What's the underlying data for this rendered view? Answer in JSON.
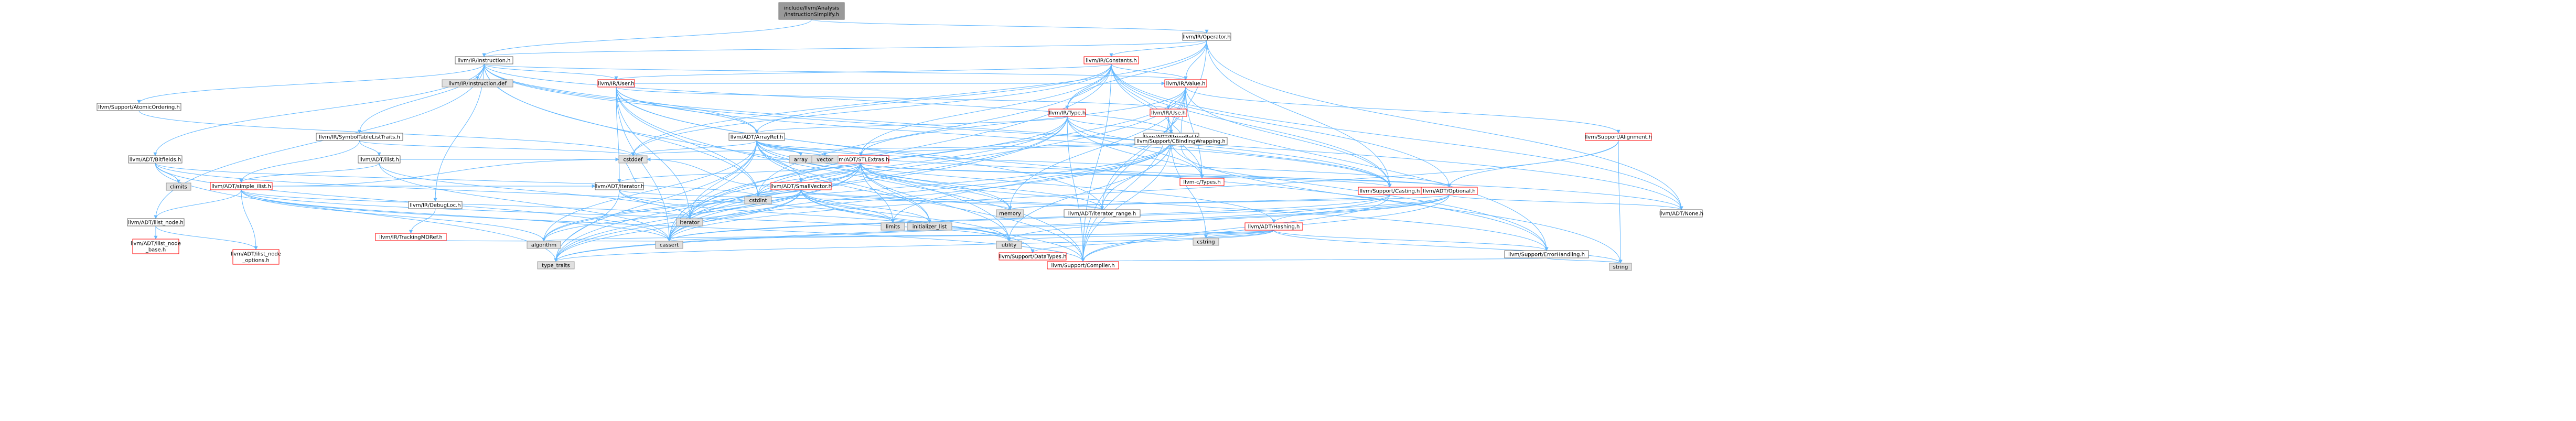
{
  "colors": {
    "root_fill": "#999999",
    "node_fill": "#ffffff",
    "node_border_red": "#ff0000",
    "node_border_normal": "#666666",
    "system_fill": "#e0e0e0",
    "system_border": "#999999",
    "edge_color": "#63b8ff"
  },
  "nodes": [
    {
      "id": "root",
      "lines": [
        "include/llvm/Analysis",
        "/InstructionSimplify.h"
      ],
      "style": "root"
    },
    {
      "id": "operator",
      "lines": [
        "llvm/IR/Operator.h"
      ],
      "style": "normal"
    },
    {
      "id": "instruction",
      "lines": [
        "llvm/IR/Instruction.h"
      ],
      "style": "normal"
    },
    {
      "id": "constants",
      "lines": [
        "llvm/IR/Constants.h"
      ],
      "style": "red"
    },
    {
      "id": "instdef",
      "lines": [
        "llvm/IR/Instruction.def"
      ],
      "style": "system"
    },
    {
      "id": "user",
      "lines": [
        "llvm/IR/User.h"
      ],
      "style": "red"
    },
    {
      "id": "type",
      "lines": [
        "llvm/IR/Type.h"
      ],
      "style": "red"
    },
    {
      "id": "value",
      "lines": [
        "llvm/IR/Value.h"
      ],
      "style": "red"
    },
    {
      "id": "atomic",
      "lines": [
        "llvm/Support/AtomicOrdering.h"
      ],
      "style": "normal"
    },
    {
      "id": "symtab",
      "lines": [
        "llvm/IR/SymbolTableListTraits.h"
      ],
      "style": "normal"
    },
    {
      "id": "arrayref",
      "lines": [
        "llvm/ADT/ArrayRef.h"
      ],
      "style": "normal"
    },
    {
      "id": "stringref",
      "lines": [
        "llvm/ADT/StringRef.h"
      ],
      "style": "normal"
    },
    {
      "id": "use",
      "lines": [
        "llvm/IR/Use.h"
      ],
      "style": "red"
    },
    {
      "id": "cbw",
      "lines": [
        "llvm/Support/CBindingWrapping.h"
      ],
      "style": "normal"
    },
    {
      "id": "alignment",
      "lines": [
        "llvm/Support/Alignment.h"
      ],
      "style": "red"
    },
    {
      "id": "bitfields",
      "lines": [
        "llvm/ADT/Bitfields.h"
      ],
      "style": "normal"
    },
    {
      "id": "ilist",
      "lines": [
        "llvm/ADT/ilist.h"
      ],
      "style": "normal"
    },
    {
      "id": "debugloc",
      "lines": [
        "llvm/IR/DebugLoc.h"
      ],
      "style": "normal"
    },
    {
      "id": "iterator",
      "lines": [
        "llvm/ADT/iterator.h"
      ],
      "style": "normal"
    },
    {
      "id": "smallvector",
      "lines": [
        "llvm/ADT/SmallVector.h"
      ],
      "style": "red"
    },
    {
      "id": "stlextras",
      "lines": [
        "llvm/ADT/STLExtras.h"
      ],
      "style": "red"
    },
    {
      "id": "casting",
      "lines": [
        "llvm/Support/Casting.h"
      ],
      "style": "red"
    },
    {
      "id": "optional",
      "lines": [
        "llvm/ADT/Optional.h"
      ],
      "style": "red"
    },
    {
      "id": "ctypes",
      "lines": [
        "llvm-c/Types.h"
      ],
      "style": "red"
    },
    {
      "id": "simpleilist",
      "lines": [
        "llvm/ADT/simple_ilist.h"
      ],
      "style": "red"
    },
    {
      "id": "trackingmd",
      "lines": [
        "llvm/IR/TrackingMDRef.h"
      ],
      "style": "red"
    },
    {
      "id": "ilistnode",
      "lines": [
        "llvm/ADT/ilist_node.h"
      ],
      "style": "normal"
    },
    {
      "id": "ilistnodebase",
      "lines": [
        "llvm/ADT/ilist_node",
        "_base.h"
      ],
      "style": "red"
    },
    {
      "id": "ilistnodeopts",
      "lines": [
        "llvm/ADT/ilist_node",
        "_options.h"
      ],
      "style": "red"
    },
    {
      "id": "iterrange",
      "lines": [
        "llvm/ADT/iterator_range.h"
      ],
      "style": "normal"
    },
    {
      "id": "hashing",
      "lines": [
        "llvm/ADT/Hashing.h"
      ],
      "style": "red"
    },
    {
      "id": "none",
      "lines": [
        "llvm/ADT/None.h"
      ],
      "style": "normal"
    },
    {
      "id": "errh",
      "lines": [
        "llvm/Support/ErrorHandling.h"
      ],
      "style": "normal"
    },
    {
      "id": "compiler",
      "lines": [
        "llvm/Support/Compiler.h"
      ],
      "style": "red"
    },
    {
      "id": "datatypes",
      "lines": [
        "llvm/Support/DataTypes.h"
      ],
      "style": "red"
    },
    {
      "id": "cstddef",
      "lines": [
        "cstddef"
      ],
      "style": "system"
    },
    {
      "id": "cstdint",
      "lines": [
        "cstdint"
      ],
      "style": "system"
    },
    {
      "id": "climits",
      "lines": [
        "climits"
      ],
      "style": "system"
    },
    {
      "id": "array",
      "lines": [
        "array"
      ],
      "style": "system"
    },
    {
      "id": "vector",
      "lines": [
        "vector"
      ],
      "style": "system"
    },
    {
      "id": "iteratorh",
      "lines": [
        "iterator"
      ],
      "style": "system"
    },
    {
      "id": "limits",
      "lines": [
        "limits"
      ],
      "style": "system"
    },
    {
      "id": "initlist",
      "lines": [
        "initializer_list"
      ],
      "style": "system"
    },
    {
      "id": "memory",
      "lines": [
        "memory"
      ],
      "style": "system"
    },
    {
      "id": "algorithm",
      "lines": [
        "algorithm"
      ],
      "style": "system"
    },
    {
      "id": "cassert",
      "lines": [
        "cassert"
      ],
      "style": "system"
    },
    {
      "id": "utility",
      "lines": [
        "utility"
      ],
      "style": "system"
    },
    {
      "id": "cstring",
      "lines": [
        "cstring"
      ],
      "style": "system"
    },
    {
      "id": "typetraits",
      "lines": [
        "type_traits"
      ],
      "style": "system"
    },
    {
      "id": "string",
      "lines": [
        "string"
      ],
      "style": "system"
    }
  ],
  "edges": [
    [
      "root",
      "operator"
    ],
    [
      "root",
      "instruction"
    ],
    [
      "operator",
      "constants"
    ],
    [
      "operator",
      "instruction"
    ],
    [
      "operator",
      "type"
    ],
    [
      "operator",
      "value"
    ],
    [
      "operator",
      "casting"
    ],
    [
      "operator",
      "none"
    ],
    [
      "operator",
      "compiler"
    ],
    [
      "operator",
      "cstddef"
    ],
    [
      "instruction",
      "instdef"
    ],
    [
      "instruction",
      "user"
    ],
    [
      "instruction",
      "atomic"
    ],
    [
      "instruction",
      "symtab"
    ],
    [
      "instruction",
      "bitfields"
    ],
    [
      "instruction",
      "debugloc"
    ],
    [
      "instruction",
      "ilistnode"
    ],
    [
      "instruction",
      "arrayref"
    ],
    [
      "instruction",
      "none"
    ],
    [
      "instruction",
      "stringref"
    ],
    [
      "instruction",
      "cstdint"
    ],
    [
      "instruction",
      "utility"
    ],
    [
      "instruction",
      "casting"
    ],
    [
      "instruction",
      "value"
    ],
    [
      "constants",
      "user"
    ],
    [
      "constants",
      "value"
    ],
    [
      "constants",
      "type"
    ],
    [
      "constants",
      "arrayref"
    ],
    [
      "constants",
      "stringref"
    ],
    [
      "constants",
      "stlextras"
    ],
    [
      "constants",
      "optional"
    ],
    [
      "constants",
      "none"
    ],
    [
      "constants",
      "casting"
    ],
    [
      "constants",
      "compiler"
    ],
    [
      "constants",
      "errh"
    ],
    [
      "constants",
      "cassert"
    ],
    [
      "constants",
      "cstddef"
    ],
    [
      "constants",
      "cstdint"
    ],
    [
      "user",
      "use"
    ],
    [
      "user",
      "value"
    ],
    [
      "user",
      "arrayref"
    ],
    [
      "user",
      "iterator"
    ],
    [
      "user",
      "iterrange"
    ],
    [
      "user",
      "casting"
    ],
    [
      "user",
      "compiler"
    ],
    [
      "user",
      "errh"
    ],
    [
      "user",
      "cassert"
    ],
    [
      "user",
      "cstdint"
    ],
    [
      "user",
      "iteratorh"
    ],
    [
      "type",
      "arrayref"
    ],
    [
      "type",
      "casting"
    ],
    [
      "type",
      "compiler"
    ],
    [
      "type",
      "typetraits"
    ],
    [
      "type",
      "cbw"
    ],
    [
      "type",
      "errh"
    ],
    [
      "type",
      "cassert"
    ],
    [
      "type",
      "cstdint"
    ],
    [
      "type",
      "iteratorh"
    ],
    [
      "type",
      "ctypes"
    ],
    [
      "value",
      "use"
    ],
    [
      "value",
      "stringref"
    ],
    [
      "value",
      "iterrange"
    ],
    [
      "value",
      "alignment"
    ],
    [
      "value",
      "cbw"
    ],
    [
      "value",
      "casting"
    ],
    [
      "value",
      "cassert"
    ],
    [
      "value",
      "iteratorh"
    ],
    [
      "value",
      "memory"
    ],
    [
      "value",
      "ctypes"
    ],
    [
      "value",
      "stlextras"
    ],
    [
      "atomic",
      "cstddef"
    ],
    [
      "symtab",
      "ilist"
    ],
    [
      "symtab",
      "simpleilist"
    ],
    [
      "symtab",
      "cstddef"
    ],
    [
      "arrayref",
      "hashing"
    ],
    [
      "arrayref",
      "none"
    ],
    [
      "arrayref",
      "smallvector"
    ],
    [
      "arrayref",
      "stlextras"
    ],
    [
      "arrayref",
      "compiler"
    ],
    [
      "arrayref",
      "algorithm"
    ],
    [
      "arrayref",
      "array"
    ],
    [
      "arrayref",
      "cassert"
    ],
    [
      "arrayref",
      "cstddef"
    ],
    [
      "arrayref",
      "initlist"
    ],
    [
      "arrayref",
      "iteratorh"
    ],
    [
      "arrayref",
      "memory"
    ],
    [
      "arrayref",
      "typetraits"
    ],
    [
      "arrayref",
      "vector"
    ],
    [
      "arrayref",
      "optional"
    ],
    [
      "stringref",
      "stlextras"
    ],
    [
      "stringref",
      "iterrange"
    ],
    [
      "stringref",
      "compiler"
    ],
    [
      "stringref",
      "algorithm"
    ],
    [
      "stringref",
      "cassert"
    ],
    [
      "stringref",
      "cstddef"
    ],
    [
      "stringref",
      "cstring"
    ],
    [
      "stringref",
      "limits"
    ],
    [
      "stringref",
      "string"
    ],
    [
      "stringref",
      "typetraits"
    ],
    [
      "stringref",
      "utility"
    ],
    [
      "use",
      "cbw"
    ],
    [
      "use",
      "compiler"
    ],
    [
      "use",
      "ctypes"
    ],
    [
      "cbw",
      "ctypes"
    ],
    [
      "alignment",
      "cassert"
    ],
    [
      "alignment",
      "optional"
    ],
    [
      "alignment",
      "string"
    ],
    [
      "bitfields",
      "climits"
    ],
    [
      "bitfields",
      "cstdint"
    ],
    [
      "bitfields",
      "limits"
    ],
    [
      "bitfields",
      "typetraits"
    ],
    [
      "bitfields",
      "cassert"
    ],
    [
      "ilist",
      "simpleilist"
    ],
    [
      "ilist",
      "cassert"
    ],
    [
      "ilist",
      "cstddef"
    ],
    [
      "ilist",
      "iteratorh"
    ],
    [
      "debugloc",
      "trackingmd"
    ],
    [
      "iterator",
      "iterrange"
    ],
    [
      "iterator",
      "cstddef"
    ],
    [
      "iterator",
      "iteratorh"
    ],
    [
      "iterator",
      "typetraits"
    ],
    [
      "iterator",
      "utility"
    ],
    [
      "smallvector",
      "compiler"
    ],
    [
      "smallvector",
      "algorithm"
    ],
    [
      "smallvector",
      "cassert"
    ],
    [
      "smallvector",
      "cstddef"
    ],
    [
      "smallvector",
      "cstdint"
    ],
    [
      "smallvector",
      "initlist"
    ],
    [
      "smallvector",
      "iteratorh"
    ],
    [
      "smallvector",
      "limits"
    ],
    [
      "smallvector",
      "memory"
    ],
    [
      "smallvector",
      "typetraits"
    ],
    [
      "smallvector",
      "utility"
    ],
    [
      "smallvector",
      "iterrange"
    ],
    [
      "smallvector",
      "datatypes"
    ],
    [
      "stlextras",
      "optional"
    ],
    [
      "stlextras",
      "iterator"
    ],
    [
      "stlextras",
      "iterrange"
    ],
    [
      "stlextras",
      "errh"
    ],
    [
      "stlextras",
      "algorithm"
    ],
    [
      "stlextras",
      "cassert"
    ],
    [
      "stlextras",
      "cstddef"
    ],
    [
      "stlextras",
      "cstdint"
    ],
    [
      "stlextras",
      "initlist"
    ],
    [
      "stlextras",
      "iteratorh"
    ],
    [
      "stlextras",
      "limits"
    ],
    [
      "stlextras",
      "memory"
    ],
    [
      "stlextras",
      "typetraits"
    ],
    [
      "stlextras",
      "utility"
    ],
    [
      "stlextras",
      "casting"
    ],
    [
      "stlextras",
      "smallvector"
    ],
    [
      "casting",
      "compiler"
    ],
    [
      "casting",
      "cassert"
    ],
    [
      "casting",
      "memory"
    ],
    [
      "casting",
      "typetraits"
    ],
    [
      "optional",
      "hashing"
    ],
    [
      "optional",
      "none"
    ],
    [
      "optional",
      "compiler"
    ],
    [
      "optional",
      "typetraits"
    ],
    [
      "optional",
      "cassert"
    ],
    [
      "optional",
      "memory"
    ],
    [
      "optional",
      "utility"
    ],
    [
      "simpleilist",
      "iterator"
    ],
    [
      "simpleilist",
      "ilistnode"
    ],
    [
      "simpleilist",
      "ilistnodeopts"
    ],
    [
      "simpleilist",
      "compiler"
    ],
    [
      "simpleilist",
      "algorithm"
    ],
    [
      "simpleilist",
      "cassert"
    ],
    [
      "simpleilist",
      "cstddef"
    ],
    [
      "simpleilist",
      "functional"
    ],
    [
      "simpleilist",
      "iteratorh"
    ],
    [
      "simpleilist",
      "utility"
    ],
    [
      "trackingmd",
      "algorithm"
    ],
    [
      "trackingmd",
      "cassert"
    ],
    [
      "ilistnode",
      "ilistnodebase"
    ],
    [
      "ilistnode",
      "ilistnodeopts"
    ],
    [
      "hashing",
      "datatypes"
    ],
    [
      "hashing",
      "errh"
    ],
    [
      "hashing",
      "algorithm"
    ],
    [
      "hashing",
      "cassert"
    ],
    [
      "hashing",
      "cstring"
    ],
    [
      "hashing",
      "string"
    ],
    [
      "hashing",
      "typetraits"
    ],
    [
      "hashing",
      "utility"
    ],
    [
      "errh",
      "compiler"
    ],
    [
      "errh",
      "string"
    ]
  ]
}
